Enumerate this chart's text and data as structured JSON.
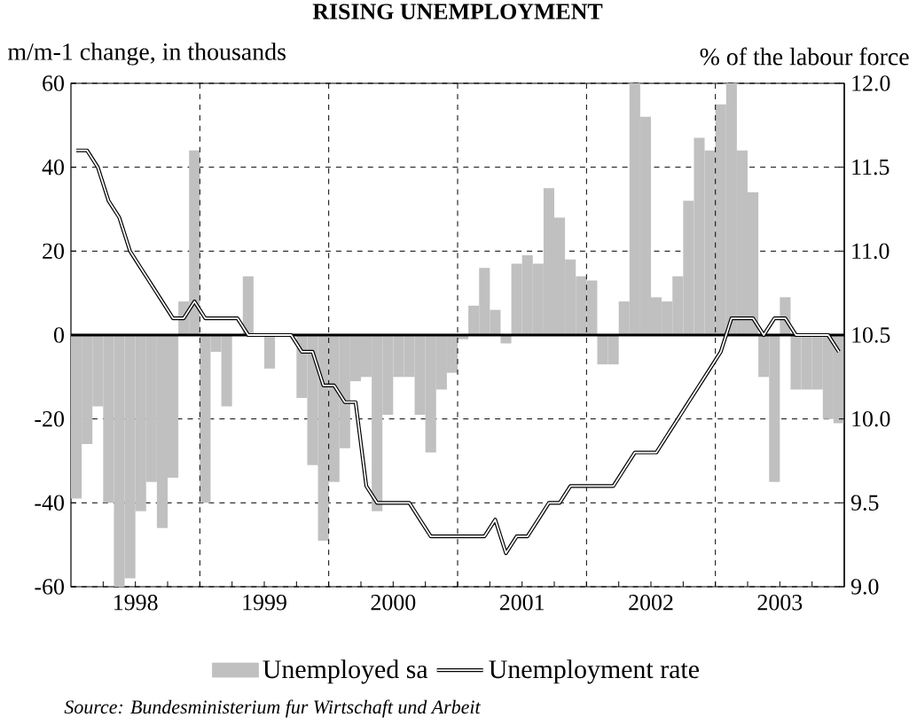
{
  "chart_data": {
    "type": "bar",
    "title": "RISING UNEMPLOYMENT",
    "ylabel": "m/m-1 change, in thousands",
    "y2label": "% of the labour force",
    "annotations": [
      "Source: Bundesministerium fur Wirtschaft und Arbeit"
    ],
    "x": [
      "1998-01",
      "1998-02",
      "1998-03",
      "1998-04",
      "1998-05",
      "1998-06",
      "1998-07",
      "1998-08",
      "1998-09",
      "1998-10",
      "1998-11",
      "1998-12",
      "1999-01",
      "1999-02",
      "1999-03",
      "1999-04",
      "1999-05",
      "1999-06",
      "1999-07",
      "1999-08",
      "1999-09",
      "1999-10",
      "1999-11",
      "1999-12",
      "2000-01",
      "2000-02",
      "2000-03",
      "2000-04",
      "2000-05",
      "2000-06",
      "2000-07",
      "2000-08",
      "2000-09",
      "2000-10",
      "2000-11",
      "2000-12",
      "2001-01",
      "2001-02",
      "2001-03",
      "2001-04",
      "2001-05",
      "2001-06",
      "2001-07",
      "2001-08",
      "2001-09",
      "2001-10",
      "2001-11",
      "2001-12",
      "2002-01",
      "2002-02",
      "2002-03",
      "2002-04",
      "2002-05",
      "2002-06",
      "2002-07",
      "2002-08",
      "2002-09",
      "2002-10",
      "2002-11",
      "2002-12",
      "2003-01",
      "2003-02",
      "2003-03",
      "2003-04",
      "2003-05",
      "2003-06",
      "2003-07",
      "2003-08",
      "2003-09",
      "2003-10",
      "2003-11",
      "2003-12"
    ],
    "series": [
      {
        "name": "Unemployed sa",
        "color": "#c0c0c0",
        "values": [
          -39,
          -26,
          -17,
          -40,
          -60,
          -58,
          -42,
          -35,
          -46,
          -34,
          8,
          44,
          -40,
          -4,
          -17,
          0,
          14,
          0,
          -8,
          0,
          0,
          -15,
          -31,
          -49,
          -35,
          -27,
          -11,
          -10,
          -42,
          -19,
          -10,
          -10,
          -19,
          -28,
          -13,
          -9,
          -1,
          7,
          16,
          6,
          -2,
          17,
          19,
          17,
          35,
          28,
          18,
          14,
          13,
          -7,
          -7,
          8,
          60,
          52,
          9,
          8,
          14,
          32,
          47,
          44,
          55,
          60,
          44,
          34,
          -10,
          -35,
          9,
          -13,
          -13,
          -13,
          -20,
          -21
        ]
      },
      {
        "name": "Unemployment rate",
        "type": "line",
        "axis": "y2",
        "color": "#000000",
        "values": [
          11.6,
          11.6,
          11.5,
          11.3,
          11.2,
          11.0,
          10.9,
          10.8,
          10.7,
          10.6,
          10.6,
          10.7,
          10.6,
          10.6,
          10.6,
          10.6,
          10.5,
          10.5,
          10.5,
          10.5,
          10.5,
          10.4,
          10.4,
          10.2,
          10.2,
          10.1,
          10.1,
          9.6,
          9.5,
          9.5,
          9.5,
          9.5,
          9.4,
          9.3,
          9.3,
          9.3,
          9.3,
          9.3,
          9.3,
          9.4,
          9.2,
          9.3,
          9.3,
          9.4,
          9.5,
          9.5,
          9.6,
          9.6,
          9.6,
          9.6,
          9.6,
          9.7,
          9.8,
          9.8,
          9.8,
          9.9,
          10.0,
          10.1,
          10.2,
          10.3,
          10.4,
          10.6,
          10.6,
          10.6,
          10.5,
          10.6,
          10.6,
          10.5,
          10.5,
          10.5,
          10.5,
          10.4
        ]
      }
    ],
    "xlim": [
      "1997-12-16",
      "2003-12-16"
    ],
    "xticks": [
      {
        "value": "1998-03-16",
        "label": null
      },
      {
        "value": "1998-06-16",
        "label": "1998"
      },
      {
        "value": "1998-09-16",
        "label": null
      },
      {
        "value": "1998-12-16",
        "label": null
      },
      {
        "value": "1999-03-16",
        "label": null
      },
      {
        "value": "1999-06-16",
        "label": "1999"
      },
      {
        "value": "1999-09-16",
        "label": null
      },
      {
        "value": "1999-12-16",
        "label": null
      },
      {
        "value": "2000-03-16",
        "label": null
      },
      {
        "value": "2000-06-16",
        "label": "2000"
      },
      {
        "value": "2000-09-16",
        "label": null
      },
      {
        "value": "2000-12-16",
        "label": null
      },
      {
        "value": "2001-03-16",
        "label": null
      },
      {
        "value": "2001-06-16",
        "label": "2001"
      },
      {
        "value": "2001-09-16",
        "label": null
      },
      {
        "value": "2001-12-16",
        "label": null
      },
      {
        "value": "2002-03-16",
        "label": null
      },
      {
        "value": "2002-06-16",
        "label": "2002"
      },
      {
        "value": "2002-09-16",
        "label": null
      },
      {
        "value": "2002-12-16",
        "label": null
      },
      {
        "value": "2003-03-16",
        "label": null
      },
      {
        "value": "2003-06-16",
        "label": "2003"
      },
      {
        "value": "2003-09-16",
        "label": null
      }
    ],
    "ylim": [
      -60,
      60
    ],
    "yticks": [
      -60,
      -40,
      -20,
      0,
      20,
      40,
      60
    ],
    "y2lim": [
      9,
      12
    ],
    "y2ticks": [
      {
        "value": 9,
        "label": "9.0"
      },
      {
        "value": 9.5,
        "label": "9.5"
      },
      {
        "value": 10,
        "label": "10.0"
      },
      {
        "value": 10.5,
        "label": "10.5"
      },
      {
        "value": 11,
        "label": "11.0"
      },
      {
        "value": 11.5,
        "label": "11.5"
      },
      {
        "value": 12,
        "label": "12.0"
      }
    ],
    "ref_lines": [
      {
        "axis": "y",
        "value": 0,
        "color": "#000000",
        "line_style": "solid"
      },
      {
        "axis": "x",
        "value": "1998-12-16",
        "color": "#000000",
        "line_style": "dashed"
      },
      {
        "axis": "x",
        "value": "1999-12-16",
        "color": "#000000",
        "line_style": "dashed"
      },
      {
        "axis": "x",
        "value": "2000-12-16",
        "color": "#000000",
        "line_style": "dashed"
      },
      {
        "axis": "x",
        "value": "2001-12-16",
        "color": "#000000",
        "line_style": "dashed"
      },
      {
        "axis": "x",
        "value": "2002-12-16",
        "color": "#000000",
        "line_style": "dashed"
      }
    ],
    "grid": "y",
    "legend": "bottom"
  }
}
